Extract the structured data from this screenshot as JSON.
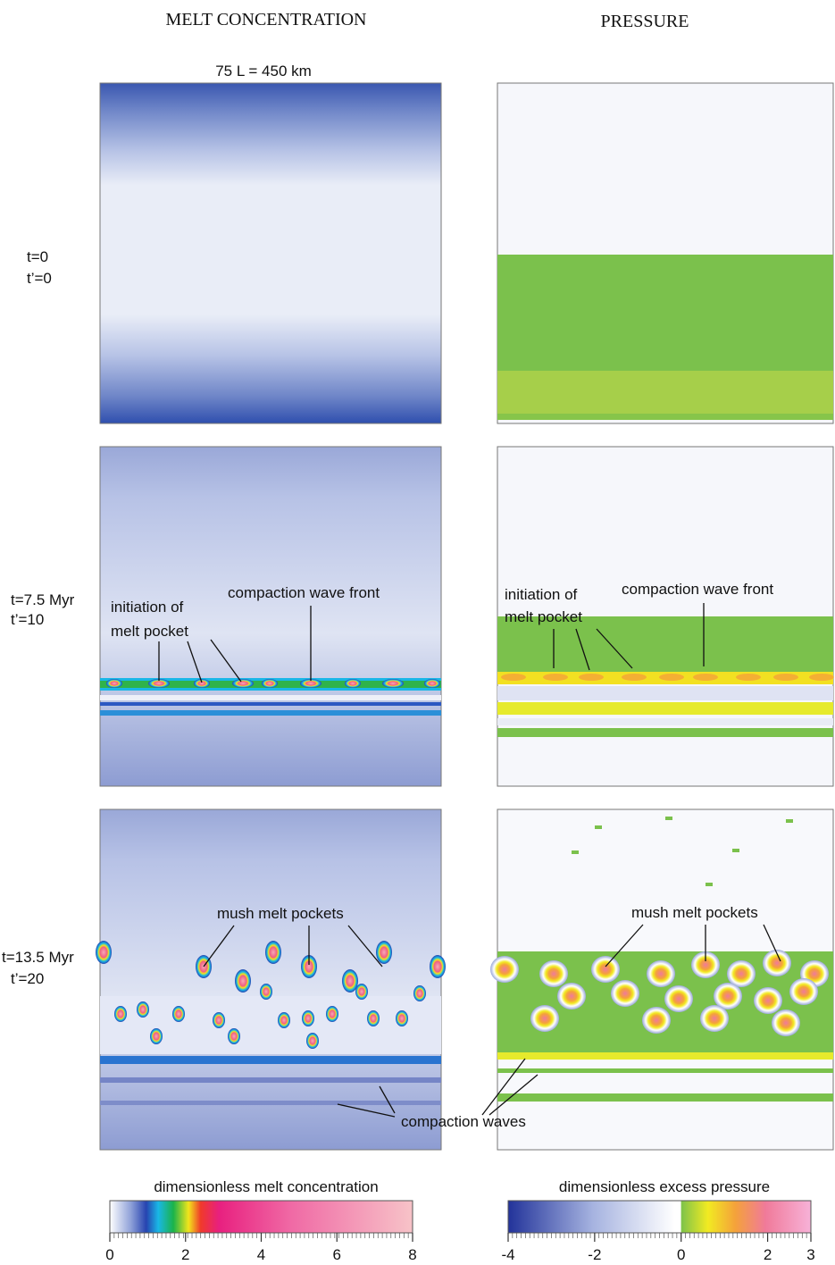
{
  "columns": [
    "MELT CONCENTRATION",
    "PRESSURE"
  ],
  "scale_label": "75 L = 450 km",
  "rows": [
    {
      "t": "t=0",
      "t_prime": "t’=0"
    },
    {
      "t": "t=7.5 Myr",
      "t_prime": "t’=10"
    },
    {
      "t": "t=13.5 Myr",
      "t_prime": "t’=20"
    }
  ],
  "annotations": {
    "row2_left": [
      "initiation of",
      "melt pocket",
      "compaction wave front"
    ],
    "row2_right": [
      "initiation of",
      "melt pocket",
      "compaction wave front"
    ],
    "row3_left": [
      "mush melt pockets"
    ],
    "row3_right": [
      "mush melt pockets"
    ],
    "row3_shared": [
      "compaction waves"
    ]
  },
  "colorbars": [
    {
      "label": "dimensionless melt concentration",
      "range": [
        0,
        8
      ],
      "ticks": [
        0,
        2,
        4,
        6,
        8
      ]
    },
    {
      "label": "dimensionless excess pressure",
      "range": [
        -4,
        3
      ],
      "ticks": [
        -4,
        -2,
        0,
        2,
        3
      ]
    }
  ]
}
